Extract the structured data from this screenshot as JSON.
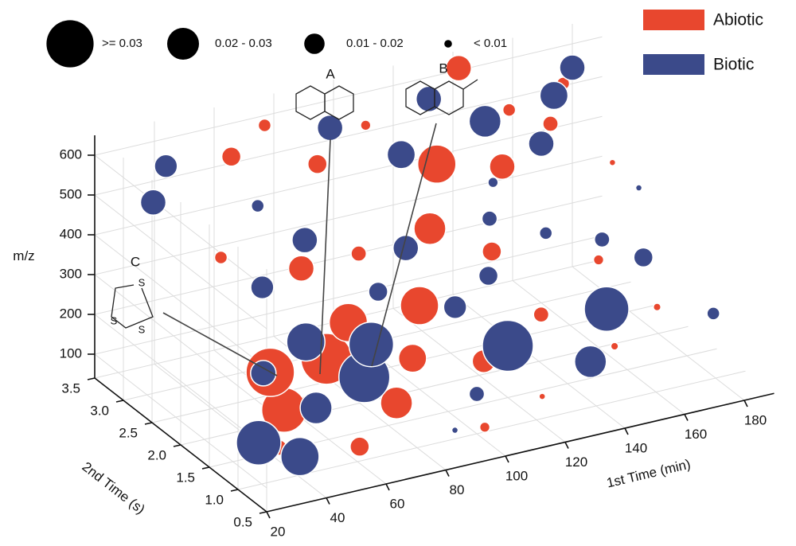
{
  "chart_data": {
    "type": "bubble3d",
    "x_label": "1st Time (min)",
    "y_label": "2nd Time (s)",
    "z_label": "m/z",
    "xlim": [
      20,
      190
    ],
    "xticks": [
      20,
      40,
      60,
      80,
      100,
      120,
      140,
      160,
      180
    ],
    "ylim": [
      0.5,
      3.5
    ],
    "yticks": [
      0.5,
      {
        "value": 1,
        "label": "1.0"
      },
      1.5,
      {
        "value": 2,
        "label": "2.0"
      },
      2.5,
      {
        "value": 3,
        "label": "3.0"
      },
      3.5
    ],
    "zlim": [
      40,
      650
    ],
    "zticks": [
      100,
      200,
      300,
      400,
      500,
      600
    ],
    "grid": true,
    "size_legend": [
      {
        "label": ">= 0.03",
        "value": 0.037
      },
      {
        "label": "0.02 - 0.03",
        "value": 0.025
      },
      {
        "label": "0.01 - 0.02",
        "value": 0.016
      },
      {
        "label": "< 0.01",
        "value": 0.006
      }
    ],
    "annotations": [
      "A",
      "B",
      "C"
    ],
    "series": [
      {
        "name": "Abiotic",
        "color": "#e8472e",
        "x": [
          30,
          35,
          40,
          45,
          50,
          55,
          60,
          65,
          70,
          75,
          80,
          85,
          90,
          95,
          100,
          105,
          110,
          115,
          120,
          125,
          130,
          135,
          140,
          145,
          150,
          155,
          160,
          165,
          170,
          175,
          60,
          75,
          45,
          95,
          180
        ],
        "y": [
          0.8,
          1.2,
          1.0,
          1.5,
          2.0,
          0.7,
          1.3,
          1.8,
          2.5,
          1.1,
          2.2,
          3.0,
          1.6,
          2.8,
          2.0,
          3.2,
          1.4,
          2.6,
          0.9,
          3.0,
          2.3,
          1.7,
          3.4,
          2.9,
          1.2,
          3.3,
          2.0,
          3.1,
          1.5,
          3.4,
          3.2,
          3.4,
          2.6,
          0.6,
          2.8
        ],
        "z": [
          150,
          180,
          210,
          140,
          170,
          120,
          260,
          200,
          340,
          150,
          220,
          520,
          180,
          300,
          250,
          560,
          160,
          350,
          110,
          450,
          300,
          200,
          620,
          420,
          150,
          500,
          260,
          470,
          180,
          520,
          560,
          590,
          400,
          110,
          380
        ],
        "size": [
          0.012,
          0.008,
          0.02,
          0.035,
          0.038,
          0.015,
          0.01,
          0.04,
          0.02,
          0.025,
          0.03,
          0.015,
          0.022,
          0.012,
          0.03,
          0.008,
          0.018,
          0.025,
          0.005,
          0.03,
          0.015,
          0.012,
          0.02,
          0.02,
          0.006,
          0.01,
          0.008,
          0.012,
          0.006,
          0.01,
          0.015,
          0.01,
          0.01,
          0.008,
          0.005
        ]
      },
      {
        "name": "Biotic",
        "color": "#3b4a8a",
        "x": [
          25,
          35,
          40,
          50,
          55,
          60,
          70,
          75,
          80,
          90,
          95,
          100,
          105,
          110,
          115,
          120,
          125,
          130,
          135,
          140,
          145,
          150,
          155,
          160,
          165,
          170,
          175,
          180,
          185,
          30,
          40,
          65,
          85,
          185,
          140
        ],
        "y": [
          0.9,
          0.7,
          1.6,
          1.2,
          2.4,
          1.9,
          1.4,
          2.7,
          1.8,
          2.2,
          3.3,
          1.0,
          2.5,
          1.9,
          3.1,
          1.5,
          2.1,
          3.4,
          2.6,
          1.1,
          3.2,
          2.4,
          1.6,
          3.0,
          2.2,
          3.3,
          2.0,
          3.5,
          1.3,
          3.0,
          3.3,
          3.0,
          0.6,
          2.6,
          2.8
        ],
        "z": [
          160,
          130,
          230,
          170,
          330,
          240,
          190,
          380,
          210,
          280,
          560,
          140,
          330,
          240,
          480,
          170,
          270,
          560,
          340,
          140,
          500,
          300,
          190,
          440,
          280,
          510,
          240,
          540,
          160,
          520,
          560,
          450,
          120,
          330,
          400
        ],
        "size": [
          0.035,
          0.03,
          0.02,
          0.025,
          0.018,
          0.03,
          0.04,
          0.02,
          0.035,
          0.015,
          0.02,
          0.012,
          0.02,
          0.018,
          0.022,
          0.04,
          0.015,
          0.02,
          0.012,
          0.025,
          0.025,
          0.01,
          0.035,
          0.02,
          0.012,
          0.022,
          0.015,
          0.02,
          0.01,
          0.02,
          0.018,
          0.01,
          0.005,
          0.005,
          0.008
        ]
      }
    ]
  }
}
